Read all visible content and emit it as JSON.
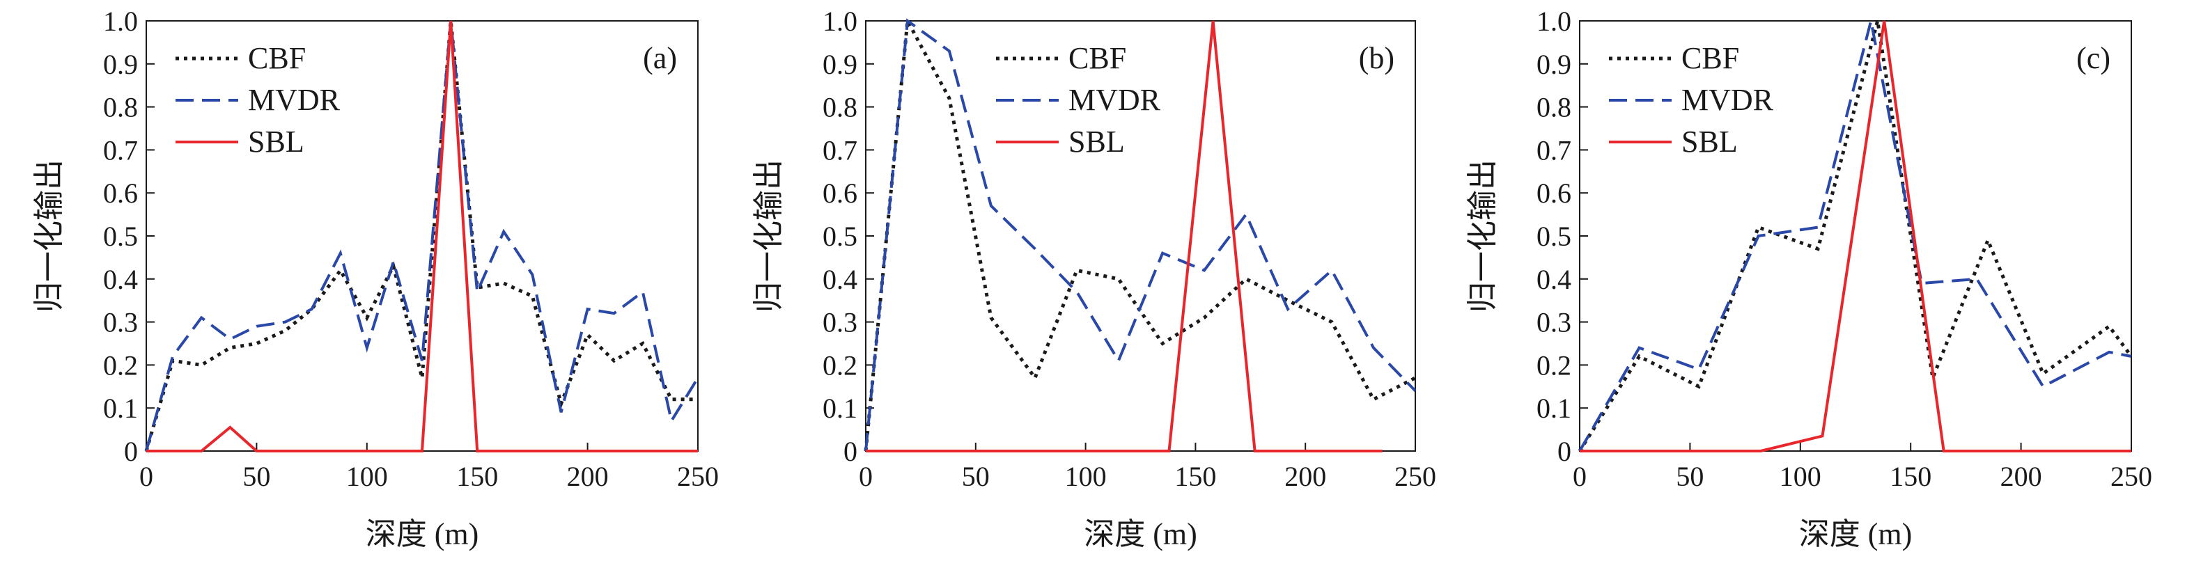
{
  "chart_data": [
    {
      "type": "line",
      "panel_label": "(a)",
      "xlabel": "深度 (m)",
      "ylabel": "归一化输出",
      "xlim": [
        0,
        250
      ],
      "ylim": [
        0,
        1.0
      ],
      "xticks": [
        "0",
        "50",
        "100",
        "150",
        "200",
        "250"
      ],
      "yticks": [
        "0",
        "0.1",
        "0.2",
        "0.3",
        "0.4",
        "0.5",
        "0.6",
        "0.7",
        "0.8",
        "0.9",
        "1.0"
      ],
      "legend_position": "top-left",
      "series": [
        {
          "name": "CBF",
          "color": "#1a1a1a",
          "style": "dotted",
          "points": [
            [
              0,
              0
            ],
            [
              12,
              0.21
            ],
            [
              25,
              0.2
            ],
            [
              38,
              0.24
            ],
            [
              50,
              0.25
            ],
            [
              63,
              0.28
            ],
            [
              75,
              0.33
            ],
            [
              88,
              0.42
            ],
            [
              100,
              0.31
            ],
            [
              112,
              0.43
            ],
            [
              125,
              0.17
            ],
            [
              138,
              1.0
            ],
            [
              150,
              0.38
            ],
            [
              162,
              0.39
            ],
            [
              175,
              0.36
            ],
            [
              188,
              0.11
            ],
            [
              200,
              0.27
            ],
            [
              212,
              0.21
            ],
            [
              225,
              0.25
            ],
            [
              238,
              0.12
            ],
            [
              250,
              0.12
            ]
          ]
        },
        {
          "name": "MVDR",
          "color": "#2a48a8",
          "style": "dashed",
          "points": [
            [
              0,
              0
            ],
            [
              12,
              0.22
            ],
            [
              25,
              0.31
            ],
            [
              38,
              0.26
            ],
            [
              50,
              0.29
            ],
            [
              63,
              0.3
            ],
            [
              75,
              0.33
            ],
            [
              88,
              0.46
            ],
            [
              100,
              0.24
            ],
            [
              112,
              0.44
            ],
            [
              125,
              0.21
            ],
            [
              138,
              1.0
            ],
            [
              150,
              0.37
            ],
            [
              162,
              0.51
            ],
            [
              175,
              0.41
            ],
            [
              188,
              0.09
            ],
            [
              200,
              0.33
            ],
            [
              212,
              0.32
            ],
            [
              225,
              0.37
            ],
            [
              238,
              0.07
            ],
            [
              250,
              0.17
            ]
          ]
        },
        {
          "name": "SBL",
          "color": "#e8262b",
          "style": "solid",
          "points": [
            [
              0,
              0
            ],
            [
              25,
              0
            ],
            [
              38,
              0.055
            ],
            [
              50,
              0
            ],
            [
              125,
              0
            ],
            [
              138,
              1.0
            ],
            [
              150,
              0
            ],
            [
              250,
              0
            ]
          ]
        }
      ]
    },
    {
      "type": "line",
      "panel_label": "(b)",
      "xlabel": "深度 (m)",
      "ylabel": "归一化输出",
      "xlim": [
        0,
        250
      ],
      "ylim": [
        0,
        1.0
      ],
      "xticks": [
        "0",
        "50",
        "100",
        "150",
        "200",
        "250"
      ],
      "yticks": [
        "0",
        "0.1",
        "0.2",
        "0.3",
        "0.4",
        "0.5",
        "0.6",
        "0.7",
        "0.8",
        "0.9",
        "1.0"
      ],
      "legend_position": "top-center",
      "series": [
        {
          "name": "CBF",
          "color": "#1a1a1a",
          "style": "dotted",
          "points": [
            [
              0,
              0
            ],
            [
              19,
              1.0
            ],
            [
              38,
              0.82
            ],
            [
              57,
              0.31
            ],
            [
              77,
              0.17
            ],
            [
              96,
              0.42
            ],
            [
              115,
              0.4
            ],
            [
              135,
              0.25
            ],
            [
              154,
              0.31
            ],
            [
              173,
              0.4
            ],
            [
              192,
              0.35
            ],
            [
              212,
              0.3
            ],
            [
              231,
              0.12
            ],
            [
              250,
              0.17
            ]
          ]
        },
        {
          "name": "MVDR",
          "color": "#2a48a8",
          "style": "dashed",
          "points": [
            [
              0,
              0
            ],
            [
              19,
              1.0
            ],
            [
              38,
              0.93
            ],
            [
              57,
              0.57
            ],
            [
              77,
              0.47
            ],
            [
              96,
              0.37
            ],
            [
              115,
              0.21
            ],
            [
              135,
              0.46
            ],
            [
              154,
              0.42
            ],
            [
              173,
              0.55
            ],
            [
              192,
              0.33
            ],
            [
              212,
              0.42
            ],
            [
              231,
              0.24
            ],
            [
              250,
              0.14
            ]
          ]
        },
        {
          "name": "SBL",
          "color": "#e8262b",
          "style": "solid",
          "points": [
            [
              0,
              0
            ],
            [
              138,
              0
            ],
            [
              158,
              1.0
            ],
            [
              177,
              0
            ],
            [
              235,
              0
            ]
          ]
        }
      ]
    },
    {
      "type": "line",
      "panel_label": "(c)",
      "xlabel": "深度 (m)",
      "ylabel": "归一化输出",
      "xlim": [
        0,
        250
      ],
      "ylim": [
        0,
        1.0
      ],
      "xticks": [
        "0",
        "50",
        "100",
        "150",
        "200",
        "250"
      ],
      "yticks": [
        "0",
        "0.1",
        "0.2",
        "0.3",
        "0.4",
        "0.5",
        "0.6",
        "0.7",
        "0.8",
        "0.9",
        "1.0"
      ],
      "legend_position": "top-left",
      "series": [
        {
          "name": "CBF",
          "color": "#1a1a1a",
          "style": "dotted",
          "points": [
            [
              0,
              0
            ],
            [
              27,
              0.22
            ],
            [
              54,
              0.15
            ],
            [
              81,
              0.52
            ],
            [
              108,
              0.47
            ],
            [
              135,
              1.0
            ],
            [
              160,
              0.17
            ],
            [
              185,
              0.49
            ],
            [
              210,
              0.18
            ],
            [
              240,
              0.29
            ],
            [
              250,
              0.22
            ]
          ]
        },
        {
          "name": "MVDR",
          "color": "#2a48a8",
          "style": "dashed",
          "points": [
            [
              0,
              0
            ],
            [
              27,
              0.24
            ],
            [
              54,
              0.19
            ],
            [
              81,
              0.5
            ],
            [
              108,
              0.52
            ],
            [
              132,
              1.0
            ],
            [
              155,
              0.39
            ],
            [
              180,
              0.4
            ],
            [
              210,
              0.15
            ],
            [
              240,
              0.23
            ],
            [
              250,
              0.22
            ]
          ]
        },
        {
          "name": "SBL",
          "color": "#e8262b",
          "style": "solid",
          "points": [
            [
              0,
              0
            ],
            [
              82,
              0
            ],
            [
              110,
              0.035
            ],
            [
              138,
              1.0
            ],
            [
              165,
              0
            ],
            [
              250,
              0
            ]
          ]
        }
      ]
    }
  ]
}
